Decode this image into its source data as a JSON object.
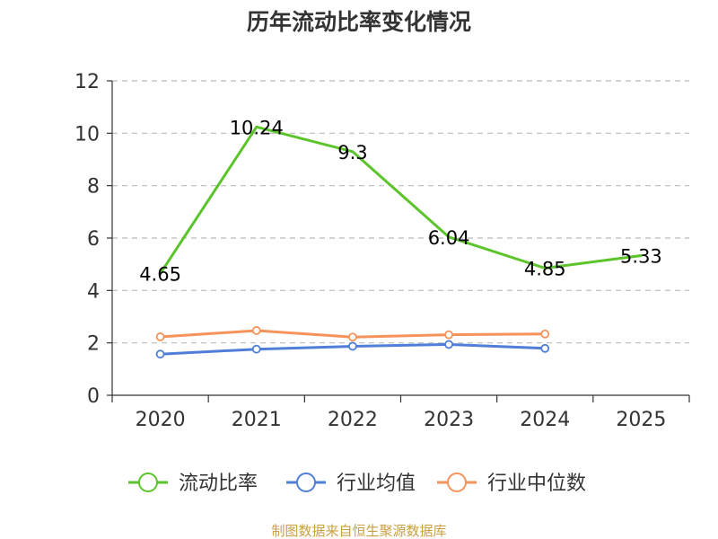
{
  "chart_data": {
    "type": "line",
    "title": "历年流动比率变化情况",
    "categories": [
      "2020",
      "2021",
      "2022",
      "2023",
      "2024",
      "2025"
    ],
    "ylim": [
      0,
      12
    ],
    "yticks": [
      0,
      2,
      4,
      6,
      8,
      10,
      12
    ],
    "grid": true,
    "legend_position": "bottom",
    "series": [
      {
        "name": "流动比率",
        "color": "#5bc42a",
        "values": [
          4.65,
          10.24,
          9.3,
          6.04,
          4.85,
          5.33
        ],
        "labels": [
          "4.65",
          "10.24",
          "9.3",
          "6.04",
          "4.85",
          "5.33"
        ],
        "show_labels": true,
        "markers": false
      },
      {
        "name": "行业均值",
        "color": "#4f7fd8",
        "values": [
          1.57,
          1.76,
          1.87,
          1.94,
          1.79,
          null
        ],
        "show_labels": false,
        "markers": true
      },
      {
        "name": "行业中位数",
        "color": "#f5935a",
        "values": [
          2.23,
          2.47,
          2.22,
          2.31,
          2.34,
          null
        ],
        "show_labels": false,
        "markers": true
      }
    ]
  },
  "footer": "制图数据来自恒生聚源数据库"
}
